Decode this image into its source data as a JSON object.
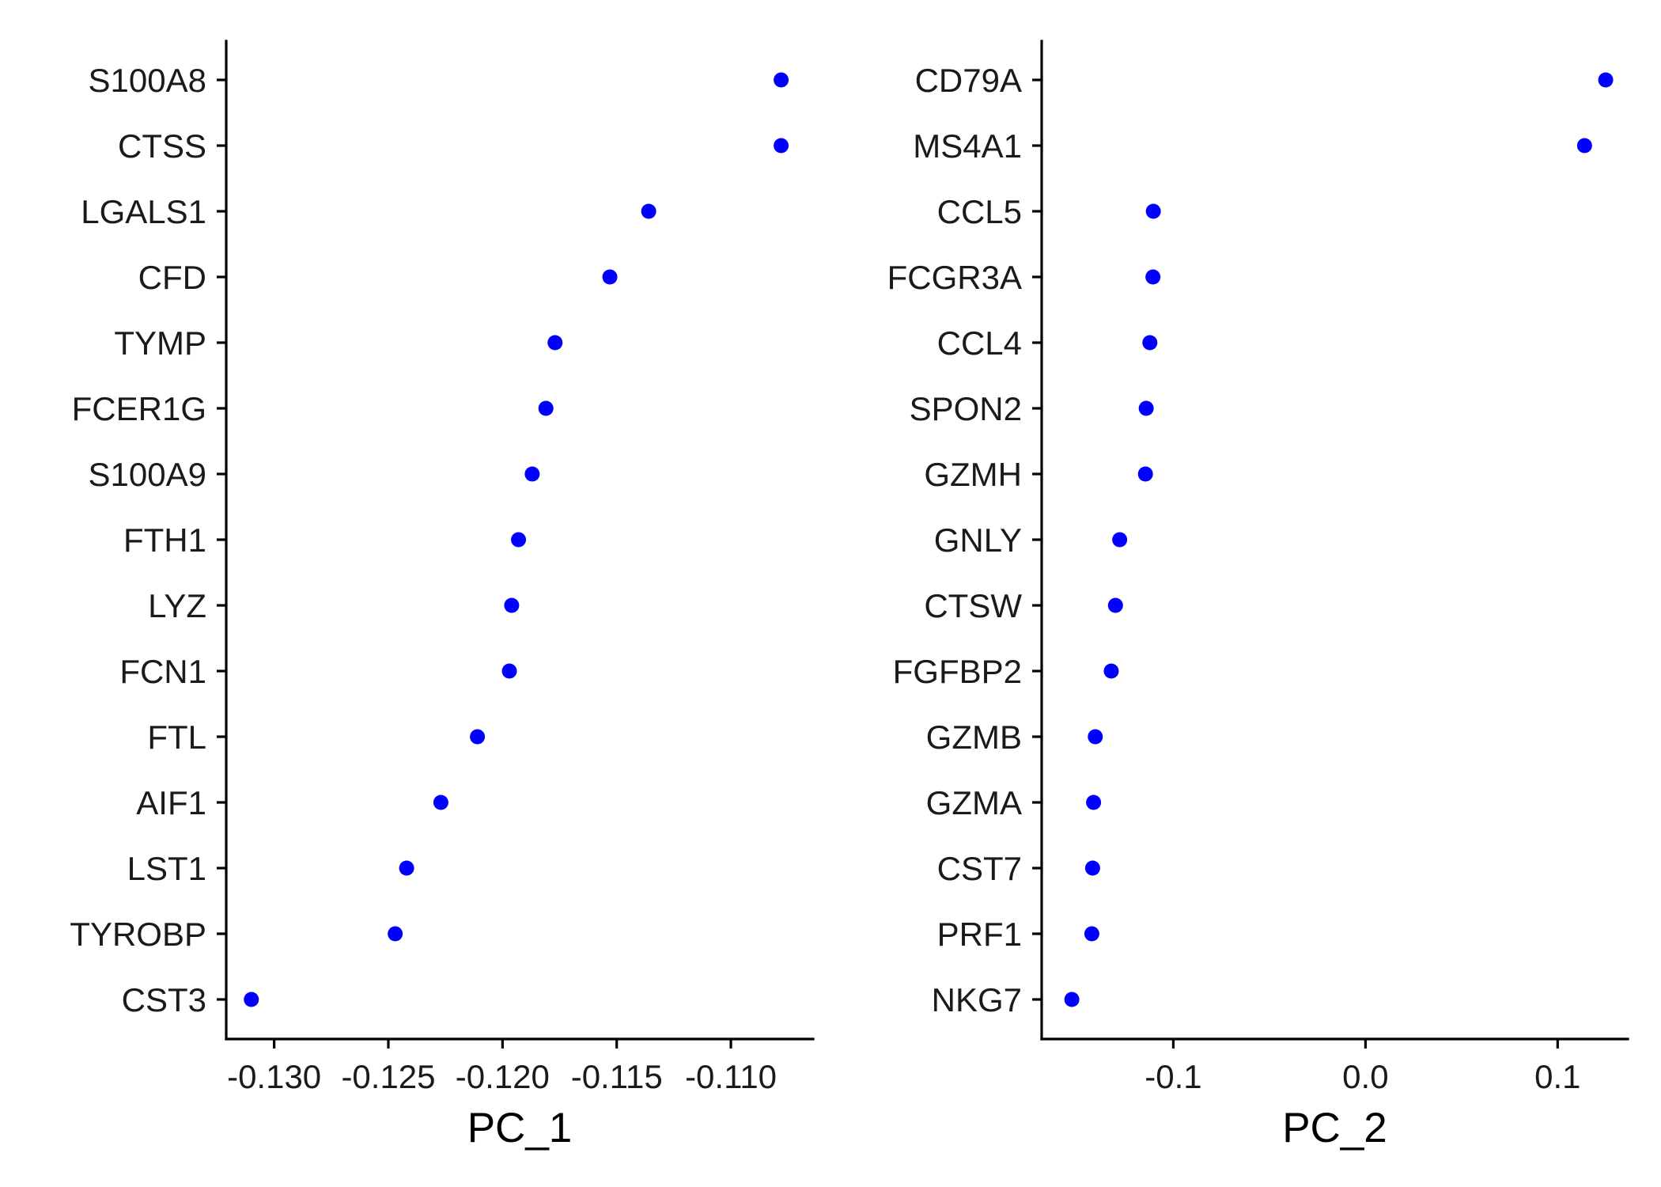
{
  "chart_data": [
    {
      "type": "scatter",
      "title": "",
      "xlabel": "PC_1",
      "ylabel": "",
      "xlim": [
        -0.1321,
        -0.1064
      ],
      "x_ticks": [
        -0.13,
        -0.125,
        -0.12,
        -0.115,
        -0.11
      ],
      "x_tick_labels": [
        "-0.130",
        "-0.125",
        "-0.120",
        "-0.115",
        "-0.110"
      ],
      "grid": false,
      "legend": "none",
      "point_color": "#0000ff",
      "genes": [
        "S100A8",
        "CTSS",
        "LGALS1",
        "CFD",
        "TYMP",
        "FCER1G",
        "S100A9",
        "FTH1",
        "LYZ",
        "FCN1",
        "FTL",
        "AIF1",
        "LST1",
        "TYROBP",
        "CST3"
      ],
      "values": [
        -0.1078,
        -0.1078,
        -0.1136,
        -0.1153,
        -0.1177,
        -0.1181,
        -0.1187,
        -0.1193,
        -0.1196,
        -0.1197,
        -0.1211,
        -0.1227,
        -0.1242,
        -0.1247,
        -0.131
      ]
    },
    {
      "type": "scatter",
      "title": "",
      "xlabel": "PC_2",
      "ylabel": "",
      "xlim": [
        -0.1685,
        0.1365
      ],
      "x_ticks": [
        -0.1,
        0.0,
        0.1
      ],
      "x_tick_labels": [
        "-0.1",
        "0.0",
        "0.1"
      ],
      "grid": false,
      "legend": "none",
      "point_color": "#0000ff",
      "genes": [
        "CD79A",
        "MS4A1",
        "CCL5",
        "FCGR3A",
        "CCL4",
        "SPON2",
        "GZMH",
        "GNLY",
        "CTSW",
        "FGFBP2",
        "GZMB",
        "GZMA",
        "CST7",
        "PRF1",
        "NKG7"
      ],
      "values": [
        0.125,
        0.114,
        -0.1104,
        -0.1106,
        -0.1122,
        -0.1141,
        -0.1145,
        -0.1279,
        -0.1301,
        -0.1323,
        -0.1406,
        -0.1415,
        -0.142,
        -0.1424,
        -0.1528
      ]
    }
  ]
}
